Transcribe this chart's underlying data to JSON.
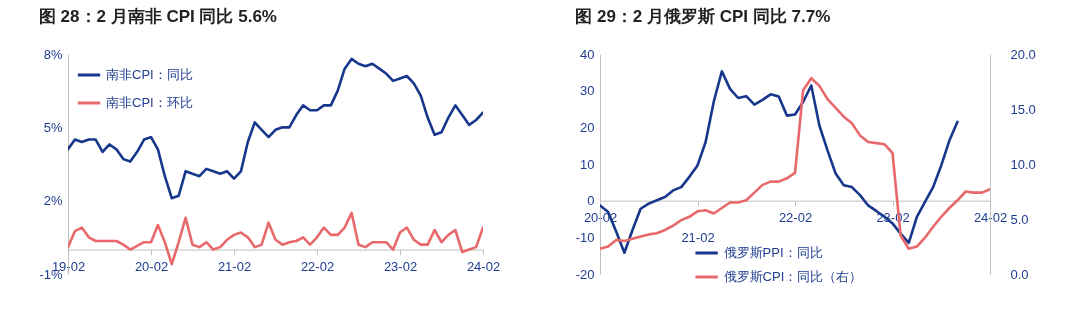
{
  "chart_data": [
    {
      "type": "line",
      "title": "图 28：2 月南非 CPI 同比 5.6%",
      "categories": [
        "19-02",
        null,
        null,
        null,
        null,
        null,
        null,
        null,
        null,
        null,
        null,
        null,
        "20-02",
        null,
        null,
        null,
        null,
        null,
        null,
        null,
        null,
        null,
        null,
        null,
        "21-02",
        null,
        null,
        null,
        null,
        null,
        null,
        null,
        null,
        null,
        null,
        null,
        "22-02",
        null,
        null,
        null,
        null,
        null,
        null,
        null,
        null,
        null,
        null,
        null,
        "23-02",
        null,
        null,
        null,
        null,
        null,
        null,
        null,
        null,
        null,
        null,
        null,
        "24-02"
      ],
      "series": [
        {
          "name": "南非CPI：同比",
          "color": "#17378c",
          "values": [
            4.1,
            4.5,
            4.4,
            4.5,
            4.5,
            4.0,
            4.3,
            4.1,
            3.7,
            3.6,
            4.0,
            4.5,
            4.6,
            4.1,
            3.0,
            2.1,
            2.2,
            3.2,
            3.1,
            3.0,
            3.3,
            3.2,
            3.1,
            3.2,
            2.9,
            3.2,
            4.4,
            5.2,
            4.9,
            4.6,
            4.9,
            5.0,
            5.0,
            5.5,
            5.9,
            5.7,
            5.7,
            5.9,
            5.9,
            6.5,
            7.4,
            7.8,
            7.6,
            7.5,
            7.6,
            7.4,
            7.2,
            6.9,
            7.0,
            7.1,
            6.8,
            6.3,
            5.4,
            4.7,
            4.8,
            5.4,
            5.9,
            5.5,
            5.1,
            5.3,
            5.6
          ]
        },
        {
          "name": "南非CPI：环比",
          "color": "#e8696b",
          "values": [
            0.1,
            0.75,
            0.9,
            0.5,
            0.35,
            0.35,
            0.35,
            0.35,
            0.2,
            0.0,
            0.15,
            0.3,
            0.3,
            1.0,
            0.3,
            -0.6,
            0.3,
            1.3,
            0.2,
            0.1,
            0.3,
            0.0,
            0.1,
            0.4,
            0.6,
            0.7,
            0.5,
            0.1,
            0.2,
            1.1,
            0.4,
            0.2,
            0.3,
            0.35,
            0.5,
            0.2,
            0.5,
            0.9,
            0.6,
            0.6,
            0.9,
            1.5,
            0.2,
            0.1,
            0.3,
            0.3,
            0.3,
            0.0,
            0.7,
            0.9,
            0.4,
            0.2,
            0.2,
            0.8,
            0.3,
            0.6,
            0.8,
            -0.1,
            0.0,
            0.1,
            0.9
          ]
        }
      ],
      "ylim": [
        -1,
        8
      ],
      "yticks": [
        {
          "value": -1,
          "label": "-1%"
        },
        {
          "value": 2,
          "label": "2%"
        },
        {
          "value": 5,
          "label": "5%"
        },
        {
          "value": 8,
          "label": "8%"
        }
      ],
      "legend": "top left"
    },
    {
      "type": "line",
      "title": "图 29：2 月俄罗斯 CPI 同比 7.7%",
      "categories": [
        "20-02",
        null,
        null,
        null,
        null,
        null,
        null,
        null,
        null,
        null,
        null,
        null,
        "21-02",
        null,
        null,
        null,
        null,
        null,
        null,
        null,
        null,
        null,
        null,
        null,
        "22-02",
        null,
        null,
        null,
        null,
        null,
        null,
        null,
        null,
        null,
        null,
        null,
        "23-02",
        null,
        null,
        null,
        null,
        null,
        null,
        null,
        null,
        null,
        null,
        null,
        "24-02"
      ],
      "series": [
        {
          "name": "俄罗斯PPI：同比",
          "color": "#17378c",
          "values": [
            -1.3,
            -3.1,
            -8.5,
            -14.2,
            -8,
            -2.2,
            -0.8,
            0.1,
            1.0,
            2.8,
            3.7,
            6.5,
            9.6,
            16,
            27,
            35.3,
            30.5,
            28,
            28.5,
            26.2,
            27.5,
            29,
            28.4,
            23.2,
            23.5,
            26.9,
            31.4,
            20.5,
            13.7,
            7.4,
            4.2,
            3.7,
            1.5,
            -1.3,
            -2.8,
            -4.4,
            -6.2,
            -9.0,
            -11.5,
            -4.4,
            -0.3,
            3.7,
            9.6,
            16.4,
            21.5,
            null,
            null,
            null,
            null
          ]
        },
        {
          "name": "俄罗斯CPI：同比（右）",
          "color": "#e8696b",
          "axis": "y2",
          "values": [
            2.3,
            2.5,
            3.1,
            3.0,
            3.2,
            3.4,
            3.6,
            3.7,
            4.0,
            4.4,
            4.9,
            5.2,
            5.7,
            5.8,
            5.5,
            6.0,
            6.5,
            6.5,
            6.7,
            7.4,
            8.1,
            8.4,
            8.4,
            8.7,
            9.2,
            16.7,
            17.8,
            17.1,
            15.9,
            15.1,
            14.3,
            13.7,
            12.6,
            12.0,
            11.9,
            11.8,
            11.0,
            3.5,
            2.3,
            2.5,
            3.3,
            4.3,
            5.2,
            6.0,
            6.7,
            7.5,
            7.4,
            7.4,
            7.7
          ]
        }
      ],
      "ylim": [
        -20,
        40
      ],
      "yticks": [
        -20,
        -10,
        0,
        10,
        20,
        30,
        40
      ],
      "y2lim": [
        0,
        20
      ],
      "y2ticks": [
        {
          "value": 0,
          "label": "0.0"
        },
        {
          "value": 5,
          "label": "5.0"
        },
        {
          "value": 10,
          "label": "10.0"
        },
        {
          "value": 15,
          "label": "15.0"
        },
        {
          "value": 20,
          "label": "20.0"
        }
      ],
      "legend": "bottom"
    }
  ]
}
